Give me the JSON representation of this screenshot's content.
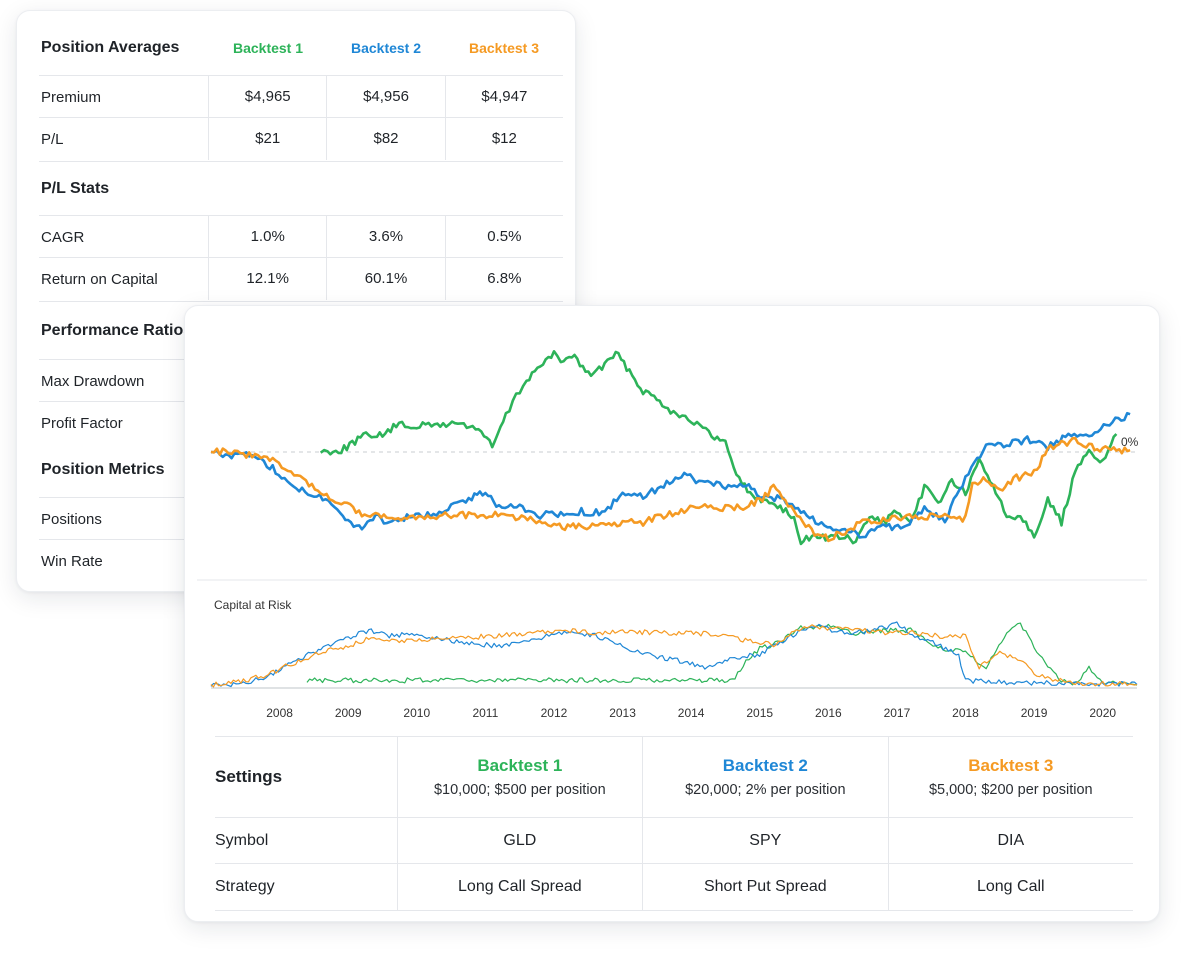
{
  "colors": {
    "backtest1": "#2db359",
    "backtest2": "#1f87d6",
    "backtest3": "#f59a23",
    "grid": "#e5e7eb",
    "zero_line": "#c9cdd2"
  },
  "stats": {
    "position_averages": {
      "title": "Position Averages",
      "headers": [
        "Backtest 1",
        "Backtest 2",
        "Backtest 3"
      ],
      "rows": [
        {
          "label": "Premium",
          "values": [
            "$4,965",
            "$4,956",
            "$4,947"
          ]
        },
        {
          "label": "P/L",
          "values": [
            "$21",
            "$82",
            "$12"
          ]
        }
      ]
    },
    "pl_stats": {
      "title": "P/L Stats",
      "rows": [
        {
          "label": "CAGR",
          "values": [
            "1.0%",
            "3.6%",
            "0.5%"
          ]
        },
        {
          "label": "Return on Capital",
          "values": [
            "12.1%",
            "60.1%",
            "6.8%"
          ]
        }
      ]
    },
    "performance_ratios": {
      "title": "Performance Ratios",
      "rows": [
        {
          "label": "Max Drawdown"
        },
        {
          "label": "Profit Factor"
        }
      ]
    },
    "position_metrics": {
      "title": "Position Metrics",
      "rows": [
        {
          "label": "Positions"
        },
        {
          "label": "Win Rate"
        }
      ]
    }
  },
  "chart_data": [
    {
      "type": "line",
      "title": "",
      "zero_label": "0%",
      "grid": false,
      "y_range": [
        -1,
        1
      ],
      "series": [
        {
          "name": "Backtest 1",
          "x": [
            2008.6,
            2008.7,
            2008.9,
            2009.1,
            2009.3,
            2009.5,
            2009.7,
            2010.0,
            2010.3,
            2010.6,
            2010.9,
            2011.1,
            2011.3,
            2011.45,
            2011.6,
            2011.8,
            2012.0,
            2012.1,
            2012.3,
            2012.5,
            2012.7,
            2012.9,
            2013.1,
            2013.3,
            2013.5,
            2013.7,
            2014.0,
            2014.3,
            2014.5,
            2014.7,
            2014.9,
            2015.1,
            2015.3,
            2015.5,
            2015.6,
            2015.8,
            2016.0,
            2016.2,
            2016.4,
            2016.6,
            2016.8,
            2017.0,
            2017.2,
            2017.4,
            2017.6,
            2017.8,
            2018.0,
            2018.2,
            2018.4,
            2018.6,
            2018.8,
            2019.0,
            2019.2,
            2019.4,
            2019.6,
            2019.8,
            2020.0,
            2020.2
          ],
          "values": [
            0.0,
            0.01,
            0.02,
            0.12,
            0.2,
            0.18,
            0.3,
            0.29,
            0.3,
            0.32,
            0.26,
            0.06,
            0.4,
            0.62,
            0.8,
            0.96,
            1.08,
            1.02,
            1.06,
            0.86,
            0.94,
            1.1,
            0.9,
            0.68,
            0.6,
            0.46,
            0.36,
            0.18,
            0.1,
            -0.3,
            -0.5,
            -0.55,
            -0.6,
            -0.75,
            -1.0,
            -0.92,
            -0.96,
            -0.94,
            -1.0,
            -0.72,
            -0.78,
            -0.66,
            -0.82,
            -0.38,
            -0.56,
            -0.32,
            -0.46,
            -0.1,
            -0.36,
            -0.72,
            -0.7,
            -0.92,
            -0.54,
            -0.78,
            -0.22,
            0.0,
            -0.1,
            0.2
          ]
        },
        {
          "name": "Backtest 2",
          "x": [
            2007.0,
            2007.3,
            2007.6,
            2007.9,
            2008.2,
            2008.5,
            2008.8,
            2009.0,
            2009.2,
            2009.4,
            2009.6,
            2009.9,
            2010.2,
            2010.5,
            2010.8,
            2011.0,
            2011.2,
            2011.5,
            2011.8,
            2012.1,
            2012.4,
            2012.7,
            2013.0,
            2013.3,
            2013.6,
            2013.9,
            2014.2,
            2014.5,
            2014.8,
            2015.0,
            2015.3,
            2015.6,
            2015.9,
            2016.2,
            2016.5,
            2016.8,
            2017.1,
            2017.4,
            2017.7,
            2018.0,
            2018.3,
            2018.6,
            2018.9,
            2019.2,
            2019.5,
            2019.8,
            2020.1,
            2020.4
          ],
          "values": [
            0.0,
            -0.04,
            -0.02,
            -0.18,
            -0.38,
            -0.46,
            -0.6,
            -0.76,
            -0.86,
            -0.72,
            -0.78,
            -0.72,
            -0.7,
            -0.6,
            -0.5,
            -0.46,
            -0.6,
            -0.6,
            -0.7,
            -0.68,
            -0.66,
            -0.68,
            -0.48,
            -0.5,
            -0.36,
            -0.26,
            -0.34,
            -0.38,
            -0.36,
            -0.5,
            -0.52,
            -0.68,
            -0.8,
            -0.86,
            -0.92,
            -0.82,
            -0.86,
            -0.62,
            -0.76,
            -0.28,
            0.06,
            0.08,
            0.14,
            0.06,
            0.18,
            0.2,
            0.32,
            0.42
          ]
        },
        {
          "name": "Backtest 3",
          "x": [
            2007.0,
            2007.3,
            2007.6,
            2007.9,
            2008.3,
            2008.6,
            2008.9,
            2009.2,
            2009.4,
            2009.6,
            2009.9,
            2010.2,
            2010.5,
            2010.8,
            2011.1,
            2011.4,
            2011.7,
            2012.0,
            2012.2,
            2012.4,
            2012.6,
            2012.8,
            2013.0,
            2013.3,
            2013.6,
            2013.9,
            2014.2,
            2014.5,
            2014.8,
            2015.0,
            2015.2,
            2015.5,
            2015.8,
            2016.0,
            2016.2,
            2016.5,
            2016.8,
            2017.1,
            2017.4,
            2017.7,
            2018.0,
            2018.1,
            2018.3,
            2018.5,
            2018.7,
            2019.0,
            2019.2,
            2019.4,
            2019.6,
            2019.8,
            2020.0,
            2020.2,
            2020.4
          ],
          "values": [
            0.0,
            0.0,
            -0.04,
            -0.1,
            -0.28,
            -0.46,
            -0.56,
            -0.68,
            -0.7,
            -0.72,
            -0.72,
            -0.72,
            -0.7,
            -0.7,
            -0.7,
            -0.72,
            -0.76,
            -0.82,
            -0.84,
            -0.82,
            -0.82,
            -0.8,
            -0.78,
            -0.78,
            -0.7,
            -0.64,
            -0.6,
            -0.62,
            -0.6,
            -0.54,
            -0.4,
            -0.64,
            -0.92,
            -0.96,
            -0.9,
            -0.78,
            -0.76,
            -0.72,
            -0.72,
            -0.7,
            -0.74,
            -0.36,
            -0.3,
            -0.42,
            -0.3,
            -0.22,
            0.02,
            0.1,
            0.12,
            0.06,
            0.04,
            0.02,
            0.02
          ]
        }
      ]
    },
    {
      "type": "line",
      "title": "Capital at Risk",
      "grid": false,
      "x_ticks": [
        2008,
        2009,
        2010,
        2011,
        2012,
        2013,
        2014,
        2015,
        2016,
        2017,
        2018,
        2019,
        2020
      ],
      "y_range": [
        0,
        1
      ],
      "series": [
        {
          "name": "Backtest 1",
          "x": [
            2008.4,
            2009.0,
            2009.6,
            2010.2,
            2010.8,
            2011.4,
            2012.0,
            2012.6,
            2013.2,
            2013.8,
            2014.3,
            2014.6,
            2014.8,
            2015.0,
            2015.3,
            2015.6,
            2016.0,
            2016.4,
            2016.8,
            2017.2,
            2017.6,
            2018.0,
            2018.3,
            2018.6,
            2018.8,
            2019.0,
            2019.2,
            2019.4,
            2019.6,
            2019.8,
            2020.0,
            2020.3,
            2020.5
          ],
          "values": [
            0.1,
            0.1,
            0.1,
            0.1,
            0.1,
            0.1,
            0.1,
            0.1,
            0.1,
            0.1,
            0.1,
            0.1,
            0.38,
            0.58,
            0.68,
            0.9,
            0.92,
            0.8,
            0.86,
            0.86,
            0.6,
            0.52,
            0.3,
            0.84,
            0.95,
            0.62,
            0.3,
            0.1,
            0.06,
            0.28,
            0.06,
            0.04,
            0.03
          ]
        },
        {
          "name": "Backtest 2",
          "x": [
            2007.0,
            2007.4,
            2007.8,
            2008.2,
            2008.6,
            2009.0,
            2009.3,
            2009.6,
            2010.0,
            2010.4,
            2010.8,
            2011.2,
            2011.6,
            2012.0,
            2012.3,
            2012.6,
            2013.0,
            2013.4,
            2013.8,
            2014.2,
            2014.6,
            2015.0,
            2015.3,
            2015.6,
            2015.9,
            2016.2,
            2016.6,
            2017.0,
            2017.3,
            2017.6,
            2017.9,
            2018.0,
            2018.3,
            2018.6,
            2019.0,
            2019.4,
            2019.8,
            2020.2,
            2020.5
          ],
          "values": [
            0.02,
            0.04,
            0.14,
            0.38,
            0.58,
            0.74,
            0.86,
            0.78,
            0.8,
            0.72,
            0.66,
            0.62,
            0.68,
            0.8,
            0.84,
            0.78,
            0.62,
            0.48,
            0.4,
            0.3,
            0.42,
            0.5,
            0.68,
            0.86,
            0.92,
            0.82,
            0.84,
            0.96,
            0.76,
            0.64,
            0.48,
            0.1,
            0.08,
            0.07,
            0.06,
            0.06,
            0.05,
            0.05,
            0.04
          ]
        },
        {
          "name": "Backtest 3",
          "x": [
            2007.0,
            2007.4,
            2007.8,
            2008.2,
            2008.6,
            2009.0,
            2009.3,
            2009.6,
            2010.0,
            2010.6,
            2011.2,
            2011.8,
            2012.2,
            2012.6,
            2013.0,
            2013.5,
            2014.0,
            2014.5,
            2014.9,
            2015.2,
            2015.5,
            2015.8,
            2016.1,
            2016.5,
            2016.9,
            2017.3,
            2017.7,
            2018.0,
            2018.2,
            2018.5,
            2018.8,
            2019.0,
            2019.2,
            2019.6,
            2020.0,
            2020.5
          ],
          "values": [
            0.03,
            0.08,
            0.18,
            0.36,
            0.52,
            0.62,
            0.74,
            0.7,
            0.72,
            0.74,
            0.78,
            0.82,
            0.86,
            0.82,
            0.84,
            0.82,
            0.82,
            0.78,
            0.68,
            0.64,
            0.84,
            0.92,
            0.88,
            0.86,
            0.82,
            0.82,
            0.76,
            0.78,
            0.3,
            0.52,
            0.4,
            0.2,
            0.14,
            0.04,
            0.05,
            0.04
          ]
        }
      ]
    }
  ],
  "settings": {
    "title": "Settings",
    "columns": [
      {
        "name": "Backtest 1",
        "subtitle": "$10,000; $500 per position"
      },
      {
        "name": "Backtest 2",
        "subtitle": "$20,000; 2% per position"
      },
      {
        "name": "Backtest 3",
        "subtitle": "$5,000; $200 per position"
      }
    ],
    "rows": [
      {
        "label": "Symbol",
        "values": [
          "GLD",
          "SPY",
          "DIA"
        ]
      },
      {
        "label": "Strategy",
        "values": [
          "Long Call Spread",
          "Short Put Spread",
          "Long Call"
        ]
      }
    ]
  }
}
